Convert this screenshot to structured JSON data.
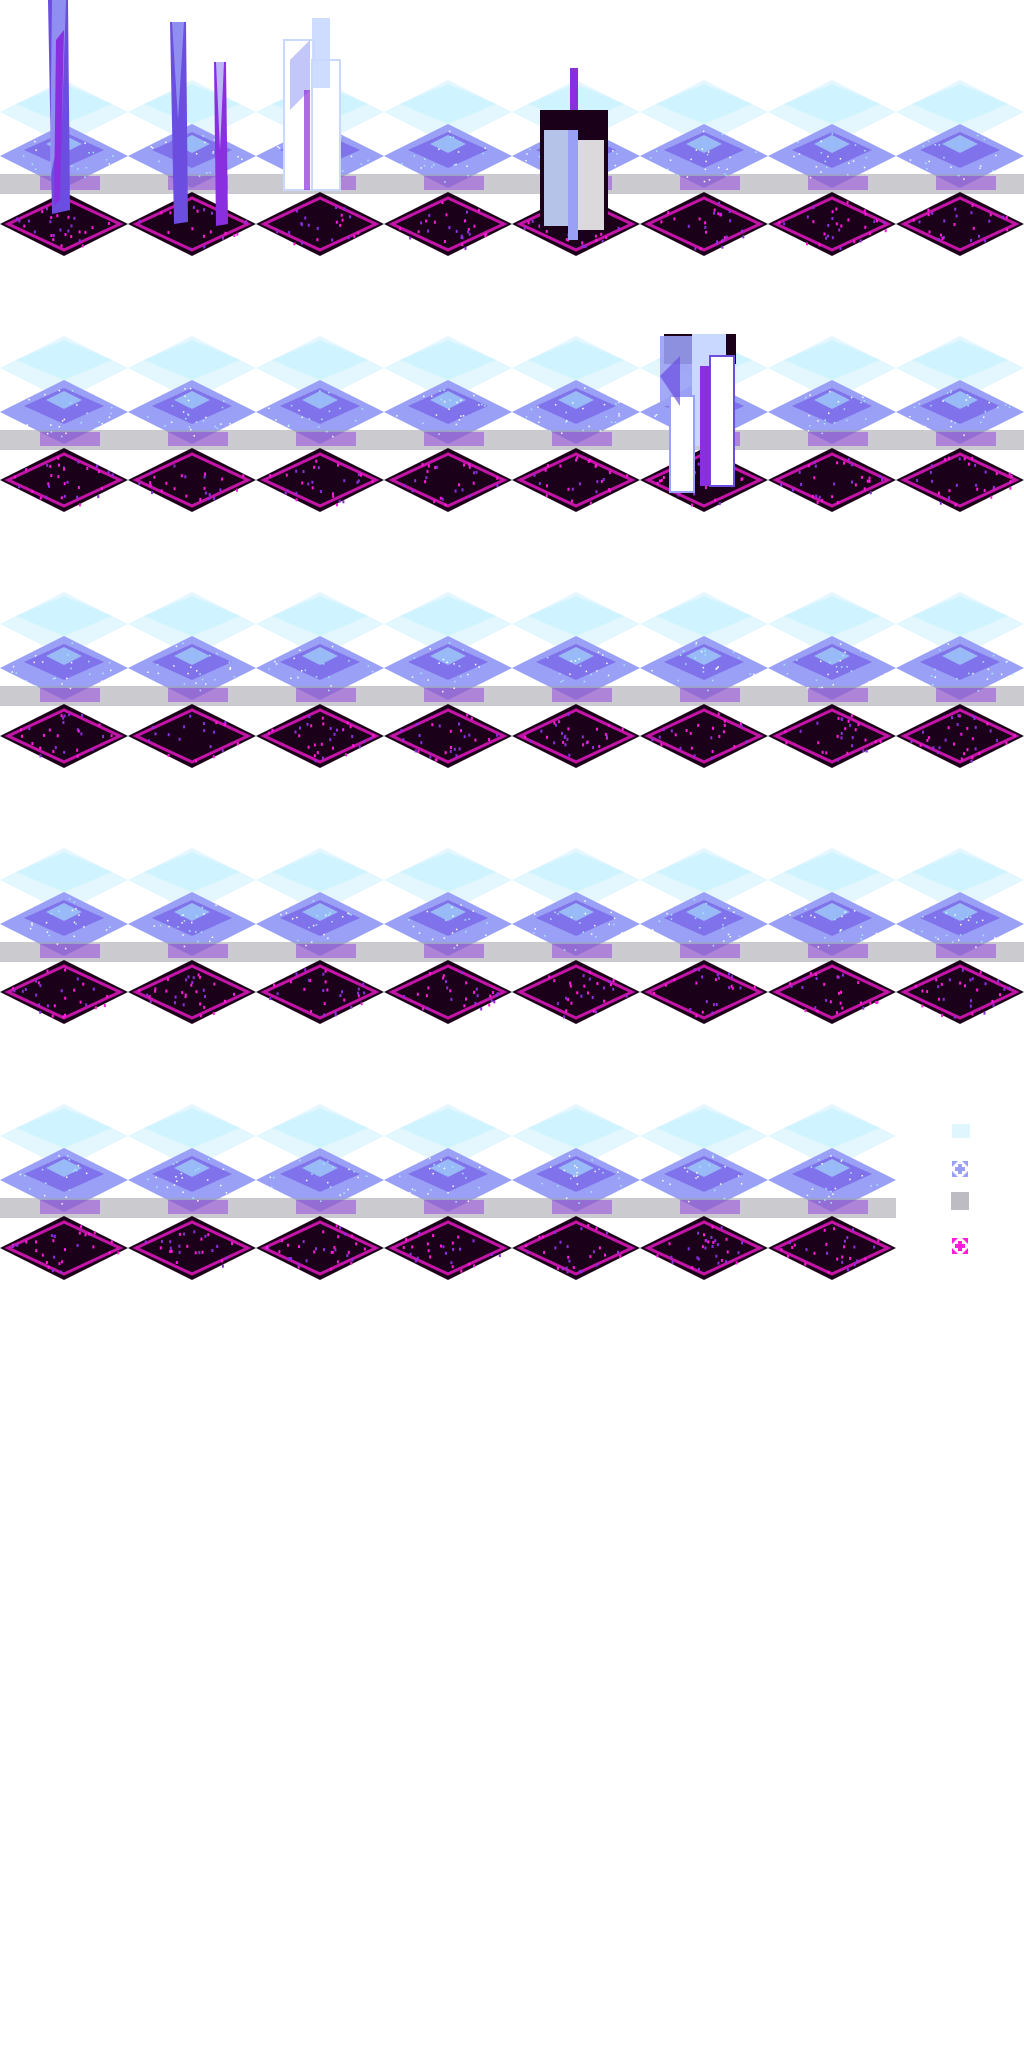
{
  "sheet": {
    "columns": 8,
    "rows": 5,
    "colors": {
      "bg": "#ffffff",
      "mist": "#dff6ff",
      "cyan": "#a8ecff",
      "lavender": "#9aa0f5",
      "violet": "#6b4de0",
      "purple": "#8a2fe0",
      "magenta": "#ff1bd8",
      "dark": "#1a0018",
      "gray": "#a0a0a8",
      "crystal": "#c8d8ff",
      "white": "#ffffff"
    },
    "tiles": [
      {
        "variant": "pillar-single"
      },
      {
        "variant": "pillar-double"
      },
      {
        "variant": "crystal-shards"
      },
      {
        "variant": "plain"
      },
      {
        "variant": "block-tower"
      },
      {
        "variant": "plain"
      },
      {
        "variant": "plain"
      },
      {
        "variant": "plain"
      },
      {
        "variant": "plain"
      },
      {
        "variant": "plain"
      },
      {
        "variant": "plain"
      },
      {
        "variant": "plain"
      },
      {
        "variant": "plain"
      },
      {
        "variant": "crystal-cluster"
      },
      {
        "variant": "plain"
      },
      {
        "variant": "plain"
      },
      {
        "variant": "plain"
      },
      {
        "variant": "plain"
      },
      {
        "variant": "plain"
      },
      {
        "variant": "plain"
      },
      {
        "variant": "plain"
      },
      {
        "variant": "plain"
      },
      {
        "variant": "plain"
      },
      {
        "variant": "plain"
      },
      {
        "variant": "plain"
      },
      {
        "variant": "plain"
      },
      {
        "variant": "plain"
      },
      {
        "variant": "plain"
      },
      {
        "variant": "plain"
      },
      {
        "variant": "plain"
      },
      {
        "variant": "plain"
      },
      {
        "variant": "plain"
      },
      {
        "variant": "plain"
      },
      {
        "variant": "plain"
      },
      {
        "variant": "plain"
      },
      {
        "variant": "plain"
      },
      {
        "variant": "plain"
      },
      {
        "variant": "plain"
      },
      {
        "variant": "plain"
      },
      {
        "variant": "mini-icons"
      }
    ]
  }
}
